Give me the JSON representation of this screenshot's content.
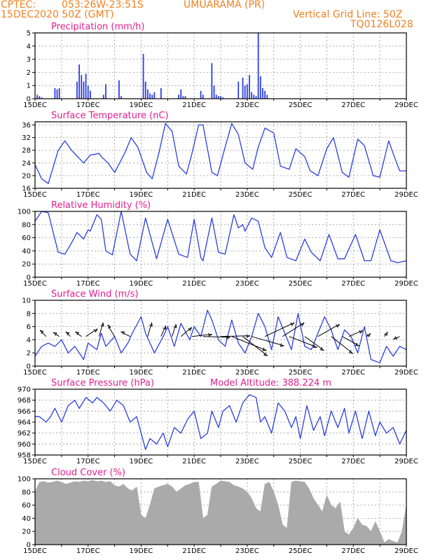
{
  "header": {
    "source": "CPTEC:",
    "coords": "053:26W-23:51S",
    "city": "UMUARAMA (PR)",
    "date": "15DEC2020 50Z (GMT)",
    "grid_note": "Vertical Grid Line: 50Z",
    "model_code": "TQ0126L028"
  },
  "colors": {
    "header": "#f08020",
    "title": "#e0208f",
    "line": "#2d3fe0",
    "cloud": "#aaaaaa"
  },
  "chart_data": [
    {
      "id": "precip",
      "type": "bar",
      "title": "Precipitation (mm/h)",
      "ylim": [
        0,
        5
      ],
      "yticks": [
        0,
        1,
        2,
        3,
        4,
        5
      ],
      "x_labels": [
        "15DEC",
        "17DEC",
        "19DEC",
        "21DEC",
        "23DEC",
        "25DEC",
        "27DEC",
        "29DEC"
      ],
      "x_unit": "hours since 15DEC 00Z",
      "x": [
        2,
        4,
        6,
        18,
        20,
        22,
        38,
        40,
        42,
        44,
        46,
        48,
        50,
        62,
        64,
        76,
        78,
        98,
        100,
        102,
        104,
        106,
        108,
        114,
        130,
        132,
        134,
        136,
        150,
        152,
        160,
        162,
        164,
        166,
        168,
        170,
        184,
        188,
        190,
        192,
        194,
        196,
        198,
        200,
        202,
        204,
        206,
        208,
        210
      ],
      "values": [
        0.3,
        0.2,
        0.1,
        0.8,
        0.7,
        0.8,
        1.3,
        2.6,
        1.8,
        1.3,
        1.9,
        1.0,
        0.6,
        0.3,
        1.1,
        1.4,
        0.2,
        3.4,
        1.3,
        0.7,
        0.4,
        0.3,
        0.5,
        0.8,
        0.3,
        0.7,
        0.2,
        0.2,
        0.6,
        0.3,
        2.7,
        1.0,
        0.3,
        0.2,
        0.2,
        0.1,
        1.3,
        1.6,
        1.0,
        1.1,
        1.8,
        0.5,
        0.3,
        0.2,
        5.0,
        1.7,
        0.8,
        0.6,
        0.3
      ]
    },
    {
      "id": "temp",
      "type": "line",
      "title": "Surface Temperature (nC)",
      "ylim": [
        16,
        37
      ],
      "yticks": [
        16,
        20,
        24,
        28,
        32,
        36
      ],
      "x_labels": [
        "15DEC",
        "17DEC",
        "19DEC",
        "21DEC",
        "23DEC",
        "25DEC",
        "27DEC",
        "29DEC"
      ],
      "x": [
        0,
        6,
        12,
        21,
        27,
        33,
        44,
        50,
        58,
        60,
        66,
        72,
        81,
        87,
        93,
        101,
        106,
        112,
        118,
        124,
        130,
        137,
        142,
        148,
        152,
        160,
        165,
        172,
        178,
        184,
        190,
        197,
        202,
        208,
        216,
        222,
        230,
        236,
        244,
        249,
        256,
        264,
        270,
        278,
        284,
        292,
        298,
        306,
        312,
        320,
        324,
        330,
        336
      ],
      "values": [
        23.5,
        19,
        17.5,
        28,
        31,
        28,
        24,
        26.5,
        27,
        26,
        24,
        21,
        27,
        32,
        29,
        21,
        19,
        27,
        36.5,
        34,
        23,
        20.5,
        27,
        36,
        36,
        21,
        20,
        29,
        36.5,
        33,
        24,
        22,
        29,
        35,
        33.5,
        23,
        22,
        28.5,
        26,
        21.5,
        20,
        28.5,
        32,
        21,
        19.5,
        31.5,
        29.5,
        20,
        19.5,
        31,
        27,
        21.5,
        21.5
      ]
    },
    {
      "id": "rh",
      "type": "line",
      "title": "Relative Humidity (%)",
      "ylim": [
        0,
        100
      ],
      "yticks": [
        0,
        20,
        40,
        60,
        80,
        100
      ],
      "x_labels": [
        "15DEC",
        "17DEC",
        "19DEC",
        "21DEC",
        "23DEC",
        "25DEC",
        "27DEC",
        "29DEC"
      ],
      "x": [
        0,
        6,
        12,
        21,
        27,
        33,
        38,
        44,
        48,
        50,
        56,
        60,
        64,
        70,
        78,
        86,
        92,
        100,
        110,
        120,
        130,
        138,
        144,
        150,
        152,
        160,
        166,
        172,
        180,
        184,
        188,
        190,
        196,
        202,
        208,
        214,
        222,
        228,
        236,
        244,
        250,
        258,
        266,
        274,
        280,
        290,
        298,
        304,
        312,
        322,
        328,
        336
      ],
      "values": [
        85,
        100,
        98,
        38,
        35,
        52,
        68,
        58,
        72,
        70,
        95,
        88,
        40,
        34,
        100,
        35,
        25,
        90,
        28,
        88,
        35,
        30,
        88,
        30,
        25,
        90,
        38,
        35,
        95,
        75,
        80,
        70,
        90,
        85,
        45,
        30,
        68,
        30,
        25,
        58,
        38,
        25,
        65,
        28,
        28,
        65,
        25,
        25,
        72,
        25,
        22,
        25
      ]
    },
    {
      "id": "wind",
      "type": "line",
      "title": "Surface Wind (m/s)",
      "ylim": [
        0,
        10
      ],
      "yticks": [
        0,
        2,
        4,
        6,
        8,
        10
      ],
      "x_labels": [
        "15DEC",
        "17DEC",
        "19DEC",
        "21DEC",
        "23DEC",
        "25DEC",
        "27DEC",
        "29DEC"
      ],
      "x": [
        0,
        6,
        12,
        18,
        24,
        30,
        36,
        44,
        48,
        56,
        60,
        64,
        72,
        78,
        84,
        88,
        96,
        100,
        108,
        116,
        120,
        126,
        132,
        140,
        144,
        150,
        156,
        160,
        166,
        172,
        178,
        184,
        190,
        196,
        202,
        208,
        214,
        220,
        226,
        232,
        238,
        244,
        250,
        256,
        262,
        268,
        274,
        280,
        286,
        292,
        298,
        304,
        312,
        318,
        324,
        330,
        336
      ],
      "values": [
        1.5,
        3,
        3.5,
        3,
        4,
        2,
        3,
        1,
        3.5,
        2.5,
        5,
        3,
        4.5,
        2,
        3.5,
        5,
        7.5,
        5,
        2,
        4.5,
        6,
        3,
        6.5,
        4,
        6,
        4.5,
        8.5,
        7,
        4,
        3,
        7,
        3.5,
        2,
        4.5,
        8,
        6,
        2.5,
        7.5,
        5,
        2.5,
        8,
        3,
        2.5,
        5,
        7.5,
        5.5,
        2.5,
        5.5,
        4.5,
        2,
        6,
        1,
        0.5,
        3,
        1.5,
        3,
        2.5
      ],
      "vectors": [
        {
          "t": 10,
          "u": -0.8,
          "v": 0.8
        },
        {
          "t": 22,
          "u": -0.8,
          "v": 0.5
        },
        {
          "t": 32,
          "u": -0.6,
          "v": 0.6
        },
        {
          "t": 42,
          "u": -0.8,
          "v": 0.6
        },
        {
          "t": 46,
          "u": 1.5,
          "v": 1.0
        },
        {
          "t": 58,
          "u": 0.5,
          "v": 1.8
        },
        {
          "t": 72,
          "u": -0.9,
          "v": 1.5
        },
        {
          "t": 86,
          "u": -1.2,
          "v": 0.6
        },
        {
          "t": 102,
          "u": 0.5,
          "v": 1.8
        },
        {
          "t": 114,
          "u": 0.6,
          "v": 1.4
        },
        {
          "t": 124,
          "u": 0.5,
          "v": 1.6
        },
        {
          "t": 132,
          "u": 1.4,
          "v": 1.2
        },
        {
          "t": 142,
          "u": 2.6,
          "v": 0.3
        },
        {
          "t": 152,
          "u": 3.5,
          "v": -0.1
        },
        {
          "t": 168,
          "u": 3.8,
          "v": 0.1
        },
        {
          "t": 178,
          "u": 4.5,
          "v": -1.8
        },
        {
          "t": 188,
          "u": 3.2,
          "v": -2.5
        },
        {
          "t": 196,
          "u": 4.2,
          "v": -1.2
        },
        {
          "t": 208,
          "u": 3.8,
          "v": 1.8
        },
        {
          "t": 224,
          "u": 2.8,
          "v": 1.8
        },
        {
          "t": 230,
          "u": 3.6,
          "v": -1.4
        },
        {
          "t": 244,
          "u": 2.5,
          "v": -1.8
        },
        {
          "t": 256,
          "u": 2.8,
          "v": 1.6
        },
        {
          "t": 268,
          "u": 2.8,
          "v": -2.2
        },
        {
          "t": 278,
          "u": 2.2,
          "v": -1.2
        },
        {
          "t": 284,
          "u": 1.8,
          "v": 0.8
        },
        {
          "t": 300,
          "u": 0.5,
          "v": 0.4
        },
        {
          "t": 316,
          "u": 0.4,
          "v": 0.6
        },
        {
          "t": 330,
          "u": -0.8,
          "v": -0.4
        }
      ]
    },
    {
      "id": "press",
      "type": "line",
      "title": "Surface Pressure (hPa)",
      "annotation": "Model Altitude: 388.224 m",
      "ylim": [
        958,
        970
      ],
      "yticks": [
        958,
        960,
        962,
        964,
        966,
        968,
        970
      ],
      "x_labels": [
        "15DEC",
        "17DEC",
        "19DEC",
        "21DEC",
        "23DEC",
        "25DEC",
        "27DEC",
        "29DEC"
      ],
      "x": [
        0,
        4,
        10,
        14,
        18,
        24,
        30,
        36,
        40,
        46,
        52,
        56,
        62,
        68,
        74,
        80,
        86,
        92,
        96,
        100,
        104,
        110,
        116,
        120,
        126,
        132,
        138,
        144,
        150,
        156,
        160,
        166,
        170,
        176,
        182,
        188,
        194,
        200,
        204,
        208,
        214,
        220,
        226,
        232,
        236,
        240,
        246,
        252,
        258,
        262,
        268,
        274,
        280,
        284,
        290,
        296,
        302,
        308,
        312,
        318,
        324,
        330,
        336
      ],
      "values": [
        965,
        965,
        964,
        965,
        966.5,
        964,
        967,
        968,
        966.5,
        968.5,
        967.5,
        968.5,
        967.5,
        966,
        968,
        967,
        964,
        965,
        962,
        959,
        961,
        960,
        962,
        959.5,
        963,
        962,
        964.5,
        966,
        961,
        962,
        966,
        963,
        966,
        967,
        964,
        967.5,
        969,
        968.5,
        964,
        965,
        962,
        967.5,
        966,
        963,
        965,
        961,
        967,
        962.5,
        965,
        961.5,
        966,
        963,
        966.5,
        962,
        966,
        961,
        966,
        961.5,
        964,
        962,
        963,
        960,
        962.5
      ]
    },
    {
      "id": "cloud",
      "type": "area",
      "title": "Cloud Cover (%)",
      "ylim": [
        0,
        100
      ],
      "yticks": [
        0,
        20,
        40,
        60,
        80,
        100
      ],
      "x_labels": [
        "15DEC",
        "17DEC",
        "19DEC",
        "21DEC",
        "23DEC",
        "25DEC",
        "27DEC",
        "29DEC"
      ],
      "x": [
        0,
        4,
        8,
        12,
        16,
        20,
        24,
        28,
        32,
        36,
        40,
        44,
        48,
        52,
        56,
        60,
        64,
        68,
        72,
        76,
        80,
        84,
        88,
        92,
        96,
        100,
        104,
        108,
        112,
        116,
        120,
        124,
        128,
        132,
        136,
        140,
        144,
        148,
        152,
        156,
        160,
        164,
        168,
        172,
        176,
        180,
        184,
        188,
        192,
        196,
        200,
        204,
        208,
        212,
        216,
        220,
        224,
        228,
        232,
        236,
        240,
        244,
        248,
        252,
        256,
        260,
        264,
        268,
        272,
        276,
        280,
        284,
        288,
        292,
        296,
        300,
        304,
        308,
        312,
        316,
        320,
        324,
        328,
        332,
        336
      ],
      "values": [
        80,
        95,
        96,
        94,
        95,
        97,
        95,
        92,
        94,
        96,
        95,
        97,
        96,
        98,
        96,
        97,
        95,
        96,
        90,
        88,
        92,
        85,
        82,
        88,
        45,
        40,
        60,
        85,
        88,
        90,
        92,
        88,
        80,
        85,
        90,
        92,
        95,
        95,
        40,
        45,
        88,
        92,
        97,
        96,
        95,
        90,
        88,
        85,
        80,
        70,
        55,
        50,
        92,
        95,
        80,
        60,
        30,
        25,
        95,
        97,
        96,
        95,
        85,
        70,
        60,
        50,
        75,
        60,
        55,
        65,
        20,
        15,
        25,
        40,
        30,
        28,
        20,
        35,
        20,
        3,
        8,
        5,
        3,
        20,
        60
      ]
    }
  ]
}
